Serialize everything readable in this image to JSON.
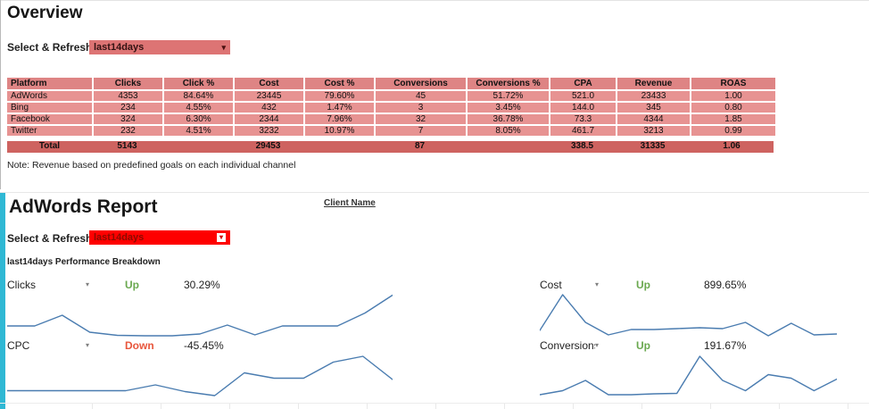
{
  "theme": {
    "table-header-bg": "#de8484",
    "table-row-bg": "#e79392",
    "table-total-bg": "#ce6360",
    "accent-cyan": "#2fb8d4",
    "spark-blue": "#4a7cb0",
    "dd1-bg": "#dd7474",
    "dd2-bg": "#fe0000"
  },
  "overview": {
    "title": "Overview",
    "select_label": "Select & Refresh:",
    "dropdown_value": "last14days",
    "table": {
      "headers": [
        "Platform",
        "Clicks",
        "Click %",
        "Cost",
        "Cost %",
        "Conversions",
        "Conversions %",
        "CPA",
        "Revenue",
        "ROAS"
      ],
      "rows": [
        [
          "AdWords",
          "4353",
          "84.64%",
          "23445",
          "79.60%",
          "45",
          "51.72%",
          "521.0",
          "23433",
          "1.00"
        ],
        [
          "Bing",
          "234",
          "4.55%",
          "432",
          "1.47%",
          "3",
          "3.45%",
          "144.0",
          "345",
          "0.80"
        ],
        [
          "Facebook",
          "324",
          "6.30%",
          "2344",
          "7.96%",
          "32",
          "36.78%",
          "73.3",
          "4344",
          "1.85"
        ],
        [
          "Twitter",
          "232",
          "4.51%",
          "3232",
          "10.97%",
          "7",
          "8.05%",
          "461.7",
          "3213",
          "0.99"
        ]
      ],
      "total": [
        "Total",
        "5143",
        "",
        "29453",
        "",
        "87",
        "",
        "338.5",
        "31335",
        "1.06"
      ]
    },
    "note": "Note: Revenue based on predefined goals on each individual channel"
  },
  "adwords": {
    "title": "AdWords Report",
    "client_name": "Client Name",
    "select_label": "Select & Refresh:",
    "dropdown_value": "last14days",
    "breakdown_title": "last14days Performance Breakdown",
    "metrics": [
      {
        "label": "Clicks",
        "direction": "Up",
        "direction_color": "#6aa84f",
        "change": "30.29%",
        "sparkline": [
          26,
          26,
          50,
          12,
          5,
          4,
          4,
          8,
          28,
          6,
          26,
          26,
          26,
          55,
          95
        ]
      },
      {
        "label": "Cost",
        "direction": "Up",
        "direction_color": "#6aa84f",
        "change": "899.65%",
        "sparkline": [
          16,
          96,
          34,
          6,
          18,
          18,
          20,
          22,
          20,
          34,
          4,
          32,
          6,
          8
        ]
      },
      {
        "label": "CPC",
        "direction": "Down",
        "direction_color": "#e8563c",
        "change": "-45.45%",
        "sparkline": [
          17,
          17,
          17,
          17,
          17,
          30,
          15,
          6,
          57,
          45,
          45,
          81,
          94,
          42
        ]
      },
      {
        "label": "Conversions",
        "direction": "Up",
        "direction_color": "#6aa84f",
        "change": "191.67%",
        "sparkline": [
          8,
          17,
          40,
          8,
          8,
          10,
          11,
          94,
          40,
          17,
          53,
          45,
          17,
          43
        ]
      }
    ]
  }
}
